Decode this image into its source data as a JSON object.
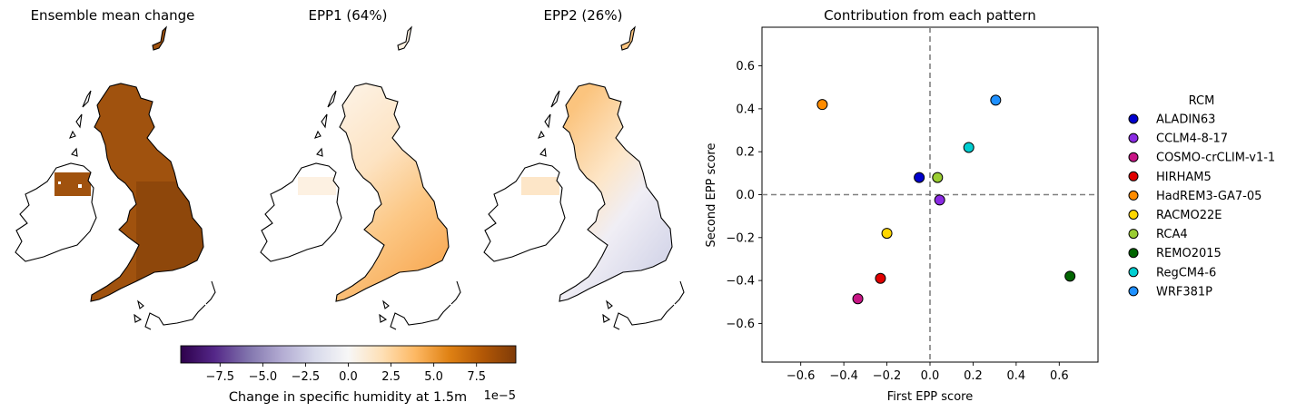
{
  "maps": [
    {
      "title": "Ensemble mean change",
      "scheme": "mean"
    },
    {
      "title": "EPP1 (64%)",
      "scheme": "epp1"
    },
    {
      "title": "EPP2 (26%)",
      "scheme": "epp2"
    }
  ],
  "colorbar": {
    "label": "Change in specific humidity at 1.5m",
    "offset_text": "1e−5",
    "ticks": [
      "−7.5",
      "−5.0",
      "−2.5",
      "0.0",
      "2.5",
      "5.0",
      "7.5"
    ],
    "tick_values": [
      -7.5,
      -5.0,
      -2.5,
      0.0,
      2.5,
      5.0,
      7.5
    ],
    "range": [
      -9.8,
      9.8
    ],
    "colormap": "PuOr_r",
    "colors": [
      "#2d004b",
      "#542788",
      "#8073ac",
      "#b2abd2",
      "#d8daeb",
      "#f7f7f7",
      "#fee0b6",
      "#fdb863",
      "#e08214",
      "#b35806",
      "#7f3b08"
    ]
  },
  "chart_data": {
    "type": "scatter",
    "title": "Contribution from each pattern",
    "xlabel": "First EPP score",
    "ylabel": "Second EPP score",
    "xlim": [
      -0.78,
      0.78
    ],
    "ylim": [
      -0.78,
      0.78
    ],
    "xticks": [
      -0.6,
      -0.4,
      -0.2,
      0.0,
      0.2,
      0.4,
      0.6
    ],
    "yticks": [
      -0.6,
      -0.4,
      -0.2,
      0.0,
      0.2,
      0.4,
      0.6
    ],
    "xtick_labels": [
      "−0.6",
      "−0.4",
      "−0.2",
      "0.0",
      "0.2",
      "0.4",
      "0.6"
    ],
    "ytick_labels": [
      "−0.6",
      "−0.4",
      "−0.2",
      "0.0",
      "0.2",
      "0.4",
      "0.6"
    ],
    "reference_lines": {
      "x": 0.0,
      "y": 0.0,
      "style": "dashed",
      "color": "#808080"
    },
    "grid": false,
    "legend": {
      "title": "RCM",
      "placement": "outside-right"
    },
    "series": [
      {
        "name": "ALADIN63",
        "color": "#0000cd",
        "x": -0.05,
        "y": 0.08
      },
      {
        "name": "CCLM4-8-17",
        "color": "#8a2be2",
        "x": 0.045,
        "y": -0.025
      },
      {
        "name": "COSMO-crCLIM-v1-1",
        "color": "#c71585",
        "x": -0.335,
        "y": -0.485
      },
      {
        "name": "HIRHAM5",
        "color": "#e00000",
        "x": -0.23,
        "y": -0.39
      },
      {
        "name": "HadREM3-GA7-05",
        "color": "#ff8c00",
        "x": -0.5,
        "y": 0.42
      },
      {
        "name": "RACMO22E",
        "color": "#ffd700",
        "x": -0.2,
        "y": -0.18
      },
      {
        "name": "RCA4",
        "color": "#9acd32",
        "x": 0.035,
        "y": 0.08
      },
      {
        "name": "REMO2015",
        "color": "#006400",
        "x": 0.65,
        "y": -0.38
      },
      {
        "name": "RegCM4-6",
        "color": "#00ced1",
        "x": 0.18,
        "y": 0.22
      },
      {
        "name": "WRF381P",
        "color": "#1e90ff",
        "x": 0.305,
        "y": 0.44
      }
    ]
  }
}
